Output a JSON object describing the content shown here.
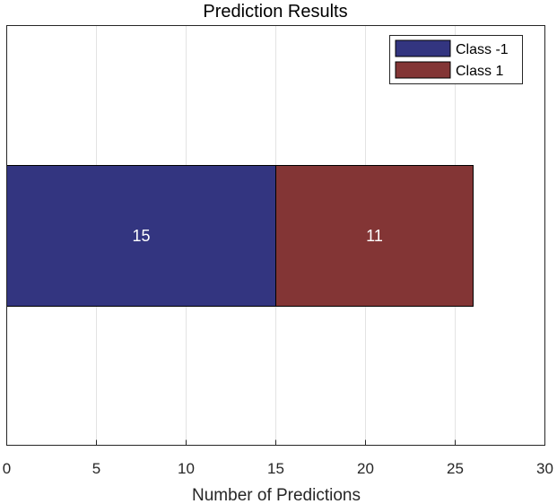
{
  "chart_data": {
    "type": "bar",
    "orientation": "horizontal",
    "stacked": true,
    "title": "Prediction Results",
    "xlabel": "Number of Predictions",
    "ylabel": "",
    "xlim": [
      0,
      30
    ],
    "xticks": [
      0,
      5,
      10,
      15,
      20,
      25,
      30
    ],
    "grid": "vertical",
    "legend_position": "top-right",
    "series": [
      {
        "name": "Class -1",
        "values": [
          15
        ],
        "color": "#333580",
        "label": "15"
      },
      {
        "name": "Class 1",
        "values": [
          11
        ],
        "color": "#833535",
        "label": "11"
      }
    ]
  }
}
